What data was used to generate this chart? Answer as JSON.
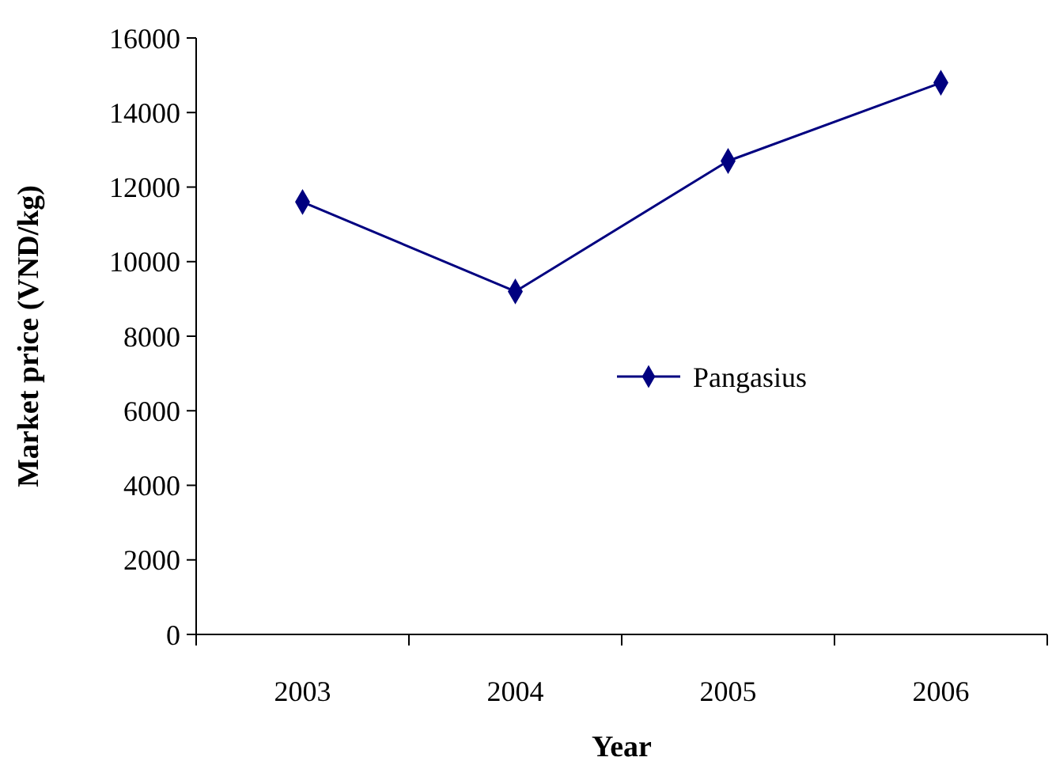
{
  "chart_data": {
    "type": "line",
    "xlabel": "Year",
    "ylabel": "Market price (VND/kg)",
    "categories": [
      "2003",
      "2004",
      "2005",
      "2006"
    ],
    "series": [
      {
        "name": "Pangasius",
        "color": "#000080",
        "values": [
          11600,
          9200,
          12700,
          14800
        ]
      }
    ],
    "ylim": [
      0,
      16000
    ],
    "yticks": [
      0,
      2000,
      4000,
      6000,
      8000,
      10000,
      12000,
      14000,
      16000
    ],
    "marker": "diamond",
    "line_style": "solid",
    "legend": "right",
    "grid": false
  }
}
